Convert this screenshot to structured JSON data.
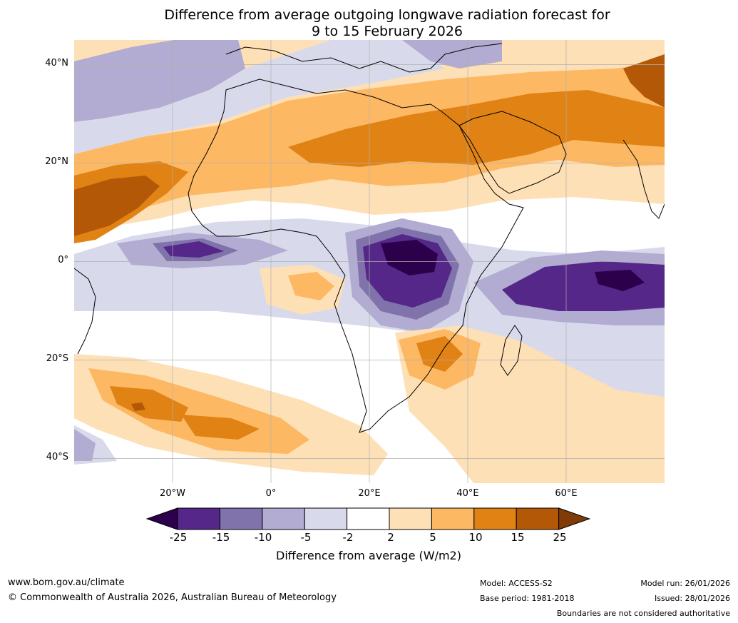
{
  "title": {
    "line1": "Difference from average outgoing longwave radiation forecast for",
    "line2": "9 to 15 February 2026"
  },
  "map": {
    "lat_labels": [
      "40°N",
      "20°N",
      "0°",
      "20°S",
      "40°S"
    ],
    "lon_labels": [
      "20°W",
      "0°",
      "20°E",
      "40°E",
      "60°E"
    ],
    "lat_range": [
      -45,
      45
    ],
    "lon_range": [
      -40,
      80
    ]
  },
  "colorbar": {
    "title": "Difference from average (W/m2)",
    "ticks": [
      "-25",
      "-15",
      "-10",
      "-5",
      "-2",
      "2",
      "5",
      "10",
      "15",
      "25"
    ],
    "colors": [
      "#2d004b",
      "#542788",
      "#8073ac",
      "#b2abd2",
      "#d8daeb",
      "#ffffff",
      "#fee0b6",
      "#fdb863",
      "#e08214",
      "#b35806",
      "#7f3b08"
    ]
  },
  "footer": {
    "website": "www.bom.gov.au/climate",
    "copyright": "© Commonwealth of Australia 2026, Australian Bureau of Meteorology",
    "model": "Model: ACCESS-S2",
    "base_period": "Base period: 1981-2018",
    "model_run": "Model run: 26/01/2026",
    "issued": "Issued: 28/01/2026",
    "disclaimer": "Boundaries are not considered authoritative"
  }
}
